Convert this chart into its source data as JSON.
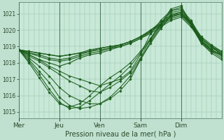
{
  "xlabel": "Pression niveau de la mer( hPa )",
  "bg_color": "#c0e0d0",
  "plot_bg_color": "#c8e8d8",
  "line_color": "#1a5c1a",
  "grid_color": "#90c0a0",
  "ylim": [
    1014.6,
    1021.7
  ],
  "yticks": [
    1015,
    1016,
    1017,
    1018,
    1019,
    1020,
    1021
  ],
  "day_labels": [
    "Mer",
    "Jeu",
    "Ven",
    "Sam",
    "Dim"
  ],
  "day_positions": [
    0,
    24,
    48,
    72,
    96
  ],
  "total_hours": 120,
  "ensemble_data": [
    {
      "points": [
        [
          0,
          1018.8
        ],
        [
          6,
          1018.5
        ],
        [
          12,
          1018.2
        ],
        [
          18,
          1017.8
        ],
        [
          24,
          1017.5
        ],
        [
          30,
          1017.2
        ],
        [
          36,
          1017.0
        ],
        [
          42,
          1016.8
        ],
        [
          48,
          1016.6
        ],
        [
          54,
          1016.8
        ],
        [
          60,
          1017.0
        ],
        [
          66,
          1017.5
        ],
        [
          72,
          1018.5
        ],
        [
          78,
          1019.8
        ],
        [
          84,
          1020.6
        ],
        [
          90,
          1021.2
        ],
        [
          96,
          1021.3
        ],
        [
          102,
          1020.6
        ],
        [
          108,
          1019.5
        ],
        [
          114,
          1019.0
        ],
        [
          120,
          1018.5
        ]
      ]
    },
    {
      "points": [
        [
          0,
          1018.8
        ],
        [
          6,
          1018.4
        ],
        [
          12,
          1018.1
        ],
        [
          18,
          1017.7
        ],
        [
          24,
          1017.3
        ],
        [
          30,
          1016.9
        ],
        [
          36,
          1016.6
        ],
        [
          42,
          1016.3
        ],
        [
          48,
          1016.2
        ],
        [
          54,
          1016.5
        ],
        [
          60,
          1016.9
        ],
        [
          66,
          1017.4
        ],
        [
          72,
          1018.3
        ],
        [
          78,
          1019.5
        ],
        [
          84,
          1020.4
        ],
        [
          90,
          1021.1
        ],
        [
          96,
          1021.2
        ],
        [
          102,
          1020.5
        ],
        [
          108,
          1019.4
        ],
        [
          114,
          1018.8
        ],
        [
          120,
          1018.4
        ]
      ]
    },
    {
      "points": [
        [
          0,
          1018.8
        ],
        [
          6,
          1018.3
        ],
        [
          12,
          1017.8
        ],
        [
          18,
          1017.2
        ],
        [
          24,
          1016.5
        ],
        [
          30,
          1016.0
        ],
        [
          36,
          1015.7
        ],
        [
          42,
          1015.5
        ],
        [
          48,
          1015.5
        ],
        [
          54,
          1015.8
        ],
        [
          60,
          1016.3
        ],
        [
          66,
          1017.0
        ],
        [
          72,
          1018.2
        ],
        [
          78,
          1019.3
        ],
        [
          84,
          1020.2
        ],
        [
          90,
          1021.0
        ],
        [
          96,
          1021.1
        ],
        [
          102,
          1020.4
        ],
        [
          108,
          1019.3
        ],
        [
          114,
          1018.7
        ],
        [
          120,
          1018.3
        ]
      ]
    },
    {
      "points": [
        [
          0,
          1018.8
        ],
        [
          6,
          1018.2
        ],
        [
          12,
          1017.5
        ],
        [
          18,
          1016.8
        ],
        [
          24,
          1015.9
        ],
        [
          30,
          1015.4
        ],
        [
          36,
          1015.2
        ],
        [
          42,
          1015.3
        ],
        [
          48,
          1015.5
        ],
        [
          54,
          1015.9
        ],
        [
          60,
          1016.5
        ],
        [
          66,
          1017.2
        ],
        [
          72,
          1018.2
        ],
        [
          78,
          1019.2
        ],
        [
          84,
          1020.1
        ],
        [
          90,
          1020.9
        ],
        [
          96,
          1021.0
        ],
        [
          102,
          1020.3
        ],
        [
          108,
          1019.2
        ],
        [
          114,
          1018.6
        ],
        [
          120,
          1018.2
        ]
      ]
    },
    {
      "points": [
        [
          0,
          1018.8
        ],
        [
          6,
          1018.1
        ],
        [
          12,
          1017.3
        ],
        [
          18,
          1016.4
        ],
        [
          24,
          1015.6
        ],
        [
          30,
          1015.2
        ],
        [
          36,
          1015.3
        ],
        [
          42,
          1015.7
        ],
        [
          48,
          1016.2
        ],
        [
          54,
          1016.7
        ],
        [
          60,
          1017.2
        ],
        [
          66,
          1017.8
        ],
        [
          72,
          1018.6
        ],
        [
          78,
          1019.4
        ],
        [
          84,
          1020.3
        ],
        [
          90,
          1021.2
        ],
        [
          96,
          1021.4
        ],
        [
          102,
          1020.3
        ],
        [
          108,
          1019.2
        ],
        [
          114,
          1018.7
        ],
        [
          120,
          1018.5
        ]
      ]
    },
    {
      "points": [
        [
          0,
          1018.8
        ],
        [
          6,
          1018.0
        ],
        [
          12,
          1017.1
        ],
        [
          18,
          1016.2
        ],
        [
          24,
          1015.5
        ],
        [
          30,
          1015.3
        ],
        [
          36,
          1015.5
        ],
        [
          42,
          1016.0
        ],
        [
          48,
          1016.6
        ],
        [
          54,
          1017.1
        ],
        [
          60,
          1017.5
        ],
        [
          66,
          1018.0
        ],
        [
          72,
          1018.7
        ],
        [
          78,
          1019.5
        ],
        [
          84,
          1020.4
        ],
        [
          90,
          1021.3
        ],
        [
          96,
          1021.5
        ],
        [
          102,
          1020.4
        ],
        [
          108,
          1019.3
        ],
        [
          114,
          1018.8
        ],
        [
          120,
          1018.5
        ]
      ]
    },
    {
      "points": [
        [
          0,
          1018.8
        ],
        [
          6,
          1018.5
        ],
        [
          12,
          1018.2
        ],
        [
          18,
          1018.0
        ],
        [
          24,
          1017.8
        ],
        [
          30,
          1018.0
        ],
        [
          36,
          1018.3
        ],
        [
          42,
          1018.5
        ],
        [
          48,
          1018.6
        ],
        [
          54,
          1018.8
        ],
        [
          60,
          1019.0
        ],
        [
          66,
          1019.2
        ],
        [
          72,
          1019.5
        ],
        [
          78,
          1019.8
        ],
        [
          84,
          1020.2
        ],
        [
          90,
          1020.6
        ],
        [
          96,
          1020.8
        ],
        [
          102,
          1020.2
        ],
        [
          108,
          1019.3
        ],
        [
          114,
          1018.8
        ],
        [
          120,
          1018.5
        ]
      ]
    },
    {
      "points": [
        [
          0,
          1018.8
        ],
        [
          6,
          1018.6
        ],
        [
          12,
          1018.4
        ],
        [
          18,
          1018.2
        ],
        [
          24,
          1018.1
        ],
        [
          30,
          1018.2
        ],
        [
          36,
          1018.4
        ],
        [
          42,
          1018.6
        ],
        [
          48,
          1018.7
        ],
        [
          54,
          1018.9
        ],
        [
          60,
          1019.1
        ],
        [
          66,
          1019.3
        ],
        [
          72,
          1019.6
        ],
        [
          78,
          1019.9
        ],
        [
          84,
          1020.3
        ],
        [
          90,
          1020.7
        ],
        [
          96,
          1020.9
        ],
        [
          102,
          1020.3
        ],
        [
          108,
          1019.4
        ],
        [
          114,
          1018.9
        ],
        [
          120,
          1018.6
        ]
      ]
    },
    {
      "points": [
        [
          0,
          1018.8
        ],
        [
          6,
          1018.6
        ],
        [
          12,
          1018.5
        ],
        [
          18,
          1018.3
        ],
        [
          24,
          1018.2
        ],
        [
          30,
          1018.3
        ],
        [
          36,
          1018.5
        ],
        [
          42,
          1018.7
        ],
        [
          48,
          1018.9
        ],
        [
          54,
          1019.0
        ],
        [
          60,
          1019.1
        ],
        [
          66,
          1019.3
        ],
        [
          72,
          1019.6
        ],
        [
          78,
          1020.0
        ],
        [
          84,
          1020.4
        ],
        [
          90,
          1020.8
        ],
        [
          96,
          1021.0
        ],
        [
          102,
          1020.4
        ],
        [
          108,
          1019.5
        ],
        [
          114,
          1019.0
        ],
        [
          120,
          1018.6
        ]
      ]
    },
    {
      "points": [
        [
          0,
          1018.8
        ],
        [
          6,
          1018.7
        ],
        [
          12,
          1018.6
        ],
        [
          18,
          1018.5
        ],
        [
          24,
          1018.4
        ],
        [
          30,
          1018.5
        ],
        [
          36,
          1018.6
        ],
        [
          42,
          1018.8
        ],
        [
          48,
          1018.9
        ],
        [
          54,
          1019.0
        ],
        [
          60,
          1019.1
        ],
        [
          66,
          1019.3
        ],
        [
          72,
          1019.6
        ],
        [
          78,
          1020.0
        ],
        [
          84,
          1020.5
        ],
        [
          90,
          1020.9
        ],
        [
          96,
          1021.1
        ],
        [
          102,
          1020.5
        ],
        [
          108,
          1019.6
        ],
        [
          114,
          1019.1
        ],
        [
          120,
          1018.7
        ]
      ]
    },
    {
      "points": [
        [
          0,
          1018.8
        ],
        [
          6,
          1018.7
        ],
        [
          12,
          1018.6
        ],
        [
          18,
          1018.5
        ],
        [
          24,
          1018.4
        ],
        [
          30,
          1018.5
        ],
        [
          36,
          1018.6
        ],
        [
          42,
          1018.7
        ],
        [
          48,
          1018.8
        ],
        [
          54,
          1018.9
        ],
        [
          60,
          1019.0
        ],
        [
          66,
          1019.2
        ],
        [
          72,
          1019.5
        ],
        [
          78,
          1019.9
        ],
        [
          84,
          1020.4
        ],
        [
          90,
          1020.8
        ],
        [
          96,
          1021.0
        ],
        [
          102,
          1020.4
        ],
        [
          108,
          1019.5
        ],
        [
          114,
          1019.0
        ],
        [
          120,
          1018.7
        ]
      ]
    }
  ]
}
